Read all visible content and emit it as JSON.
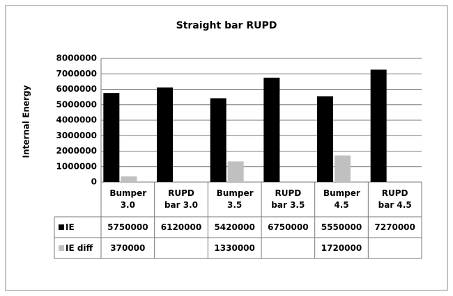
{
  "chart_data": {
    "type": "bar",
    "title": "Straight bar RUPD",
    "y_label": "Internal Energy",
    "categories": [
      "Bumper 3.0",
      "RUPD bar 3.0",
      "Bumper 3.5",
      "RUPD bar 3.5",
      "Bumper 4.5",
      "RUPD bar 4.5"
    ],
    "series": [
      {
        "name": "IE",
        "color": "#000000",
        "values": [
          5750000,
          6120000,
          5420000,
          6750000,
          5550000,
          7270000
        ]
      },
      {
        "name": "IE diff",
        "color": "#c0c0c0",
        "values": [
          370000,
          null,
          1330000,
          null,
          1720000,
          null
        ]
      }
    ],
    "ylim": [
      0,
      8000000
    ],
    "yticks": [
      0,
      1000000,
      2000000,
      3000000,
      4000000,
      5000000,
      6000000,
      7000000,
      8000000
    ],
    "grid": true
  }
}
